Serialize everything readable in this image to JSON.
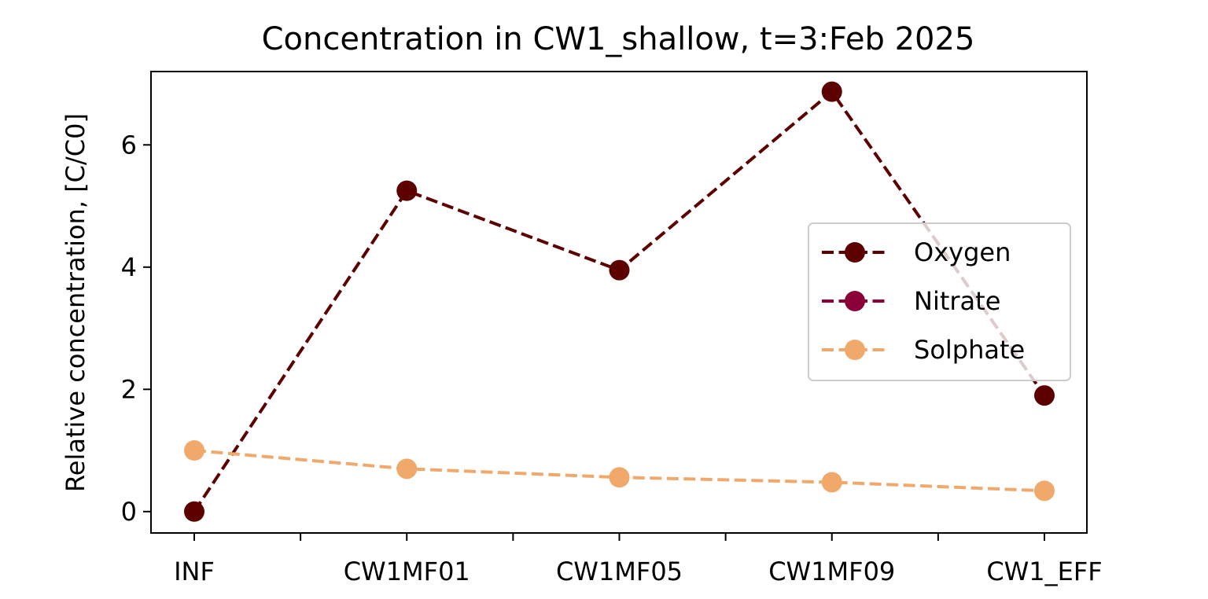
{
  "chart_data": {
    "type": "line",
    "title": "Concentration in CW1_shallow, t=3:Feb 2025",
    "xlabel": "",
    "ylabel": "Relative concentration, [C/C0]",
    "categories": [
      "INF",
      "CW1MF01",
      "CW1MF05",
      "CW1MF09",
      "CW1_EFF"
    ],
    "yticks": [
      0,
      2,
      4,
      6
    ],
    "ylim": [
      -0.35,
      7.2
    ],
    "grid": false,
    "legend_position": "center-right",
    "series": [
      {
        "name": "Oxygen",
        "color": "#5c0000",
        "values": [
          0.0,
          5.25,
          3.95,
          6.87,
          1.9
        ]
      },
      {
        "name": "Nitrate",
        "color": "#8b0038",
        "values": [
          null,
          null,
          null,
          null,
          null
        ]
      },
      {
        "name": "Solphate",
        "color": "#f0a96b",
        "values": [
          1.0,
          0.7,
          0.56,
          0.48,
          0.34
        ]
      }
    ]
  }
}
